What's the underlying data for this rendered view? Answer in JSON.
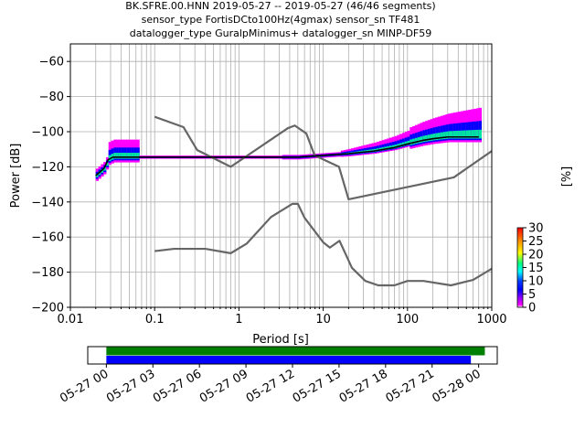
{
  "title_lines": [
    "BK.SFRE.00.HNN   2019-05-27 -- 2019-05-27  (46/46 segments)",
    "sensor_type FortisDCto100Hz(4gmax) sensor_sn TF481",
    "datalogger_type GuralpMinimus+ datalogger_sn MINP-DF59"
  ],
  "chart_data": [
    {
      "type": "line",
      "subtype": "probabilistic power spectral density",
      "xlabel": "Period [s]",
      "ylabel": "Power [dB]",
      "x_scale": "log",
      "xlim": [
        0.01,
        1000
      ],
      "ylim": [
        -200,
        -50
      ],
      "x_ticks": [
        0.01,
        0.1,
        1,
        10,
        100,
        1000
      ],
      "x_tick_labels": [
        "0.01",
        "0.1",
        "1",
        "10",
        "100",
        "1000"
      ],
      "y_ticks": [
        -200,
        -180,
        -160,
        -140,
        -120,
        -100,
        -80,
        -60
      ],
      "y_tick_labels": [
        "−200",
        "−180",
        "−160",
        "−140",
        "−120",
        "−100",
        "−80",
        "−60"
      ],
      "grid": true,
      "series": [
        {
          "role": "high noise model",
          "color": "#666666",
          "points": [
            [
              0.1,
              -91.5
            ],
            [
              0.22,
              -97.4
            ],
            [
              0.32,
              -110.5
            ],
            [
              0.8,
              -120
            ],
            [
              3.8,
              -98
            ],
            [
              4.6,
              -96.5
            ],
            [
              6.3,
              -101
            ],
            [
              7.9,
              -113.5
            ],
            [
              15.4,
              -120
            ],
            [
              20,
              -138.5
            ],
            [
              354.8,
              -126
            ],
            [
              1000,
              -111
            ]
          ]
        },
        {
          "role": "low noise model",
          "color": "#666666",
          "points": [
            [
              0.1,
              -168
            ],
            [
              0.17,
              -166.7
            ],
            [
              0.4,
              -166.7
            ],
            [
              0.8,
              -169.2
            ],
            [
              1.24,
              -163.7
            ],
            [
              2.4,
              -148.6
            ],
            [
              4.3,
              -141.1
            ],
            [
              5,
              -141.1
            ],
            [
              6,
              -149
            ],
            [
              10,
              -163
            ],
            [
              12,
              -166
            ],
            [
              15.6,
              -162.1
            ],
            [
              21.9,
              -177.5
            ],
            [
              31.6,
              -185
            ],
            [
              45,
              -187.5
            ],
            [
              70,
              -187.5
            ],
            [
              100,
              -185
            ],
            [
              154.5,
              -185
            ],
            [
              328.2,
              -187.5
            ],
            [
              600,
              -184.4
            ],
            [
              1000,
              -178
            ]
          ]
        },
        {
          "role": "mode",
          "color": "#000000",
          "points": [
            [
              0.02,
              -125
            ],
            [
              0.025,
              -121
            ],
            [
              0.028,
              -116
            ],
            [
              0.032,
              -114.5
            ],
            [
              0.05,
              -114.5
            ],
            [
              0.2,
              -114.5
            ],
            [
              1,
              -114.5
            ],
            [
              5,
              -114.5
            ],
            [
              10,
              -113.5
            ],
            [
              20,
              -112.5
            ],
            [
              40,
              -111
            ],
            [
              70,
              -109
            ],
            [
              100,
              -107
            ],
            [
              150,
              -105
            ],
            [
              200,
              -104
            ],
            [
              300,
              -103
            ],
            [
              400,
              -103
            ],
            [
              700,
              -103
            ]
          ]
        }
      ],
      "psd_region": {
        "period_range": [
          0.02,
          700
        ],
        "color_levels_percent": [
          0,
          5,
          10,
          15,
          20,
          25,
          30
        ]
      }
    },
    {
      "type": "colorbar",
      "label": "[%]",
      "range": [
        0,
        30
      ],
      "ticks": [
        0,
        5,
        10,
        15,
        20,
        25,
        30
      ],
      "tick_labels": [
        "0",
        "5",
        "10",
        "15",
        "20",
        "25",
        "30"
      ],
      "colormap": "pqlx"
    },
    {
      "type": "timeline",
      "tick_labels": [
        "05-27 00",
        "05-27 03",
        "05-27 06",
        "05-27 09",
        "05-27 12",
        "05-27 15",
        "05-27 18",
        "05-27 21",
        "05-28 00"
      ],
      "tick_hours": [
        0,
        3,
        6,
        9,
        12,
        15,
        18,
        21,
        24
      ],
      "xlim_hours": [
        -1.2,
        25.2
      ],
      "bars": [
        {
          "role": "data coverage",
          "color": "#008000",
          "start_hour": 0,
          "end_hour": 24.4
        },
        {
          "role": "psd segments",
          "color": "#0000ff",
          "start_hour": 0,
          "end_hour": 23.5
        }
      ]
    }
  ]
}
